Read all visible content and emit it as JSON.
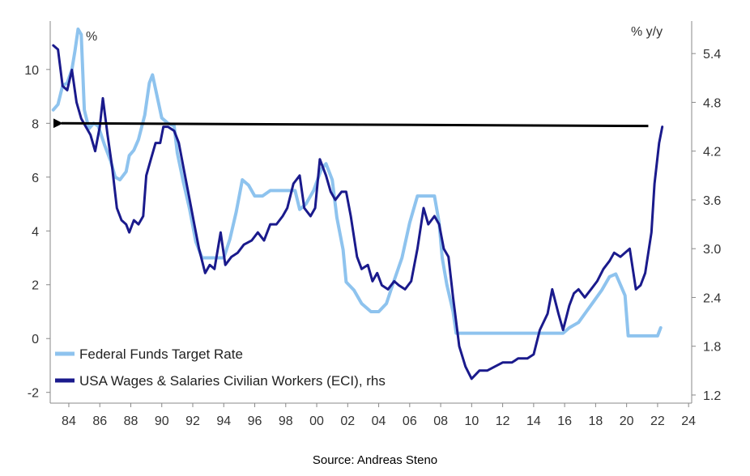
{
  "chart_data": {
    "type": "line",
    "left_axis": {
      "unit": "%",
      "ylim": [
        -2.4,
        11.8
      ],
      "ticks": [
        -2,
        0,
        2,
        4,
        6,
        8,
        10
      ]
    },
    "right_axis": {
      "unit": "% y/y",
      "ylim": [
        1.1,
        5.8
      ],
      "ticks": [
        1.2,
        1.8,
        2.4,
        3.0,
        3.6,
        4.2,
        4.8,
        5.4
      ]
    },
    "x_axis": {
      "xlim": [
        1982.8,
        2024.2
      ],
      "tick_values": [
        1984,
        1986,
        1988,
        1990,
        1992,
        1994,
        1996,
        1998,
        2000,
        2002,
        2004,
        2006,
        2008,
        2010,
        2012,
        2014,
        2016,
        2018,
        2020,
        2022,
        2024
      ],
      "tick_labels": [
        "84",
        "86",
        "88",
        "90",
        "92",
        "94",
        "96",
        "98",
        "00",
        "02",
        "04",
        "06",
        "08",
        "10",
        "12",
        "14",
        "16",
        "18",
        "20",
        "22",
        "24"
      ]
    },
    "series": [
      {
        "name": "Federal Funds Target Rate",
        "axis": "left",
        "color": "#8ec3ee",
        "points": [
          [
            1983.0,
            8.5
          ],
          [
            1983.3,
            8.7
          ],
          [
            1983.6,
            9.4
          ],
          [
            1983.9,
            9.5
          ],
          [
            1984.2,
            10.0
          ],
          [
            1984.4,
            10.7
          ],
          [
            1984.6,
            11.5
          ],
          [
            1984.8,
            11.3
          ],
          [
            1985.0,
            8.5
          ],
          [
            1985.3,
            7.8
          ],
          [
            1985.6,
            8.0
          ],
          [
            1985.9,
            7.9
          ],
          [
            1986.3,
            7.2
          ],
          [
            1986.7,
            6.6
          ],
          [
            1987.0,
            6.0
          ],
          [
            1987.3,
            5.9
          ],
          [
            1987.7,
            6.2
          ],
          [
            1987.9,
            6.8
          ],
          [
            1988.2,
            7.0
          ],
          [
            1988.5,
            7.4
          ],
          [
            1988.9,
            8.3
          ],
          [
            1989.2,
            9.5
          ],
          [
            1989.4,
            9.8
          ],
          [
            1989.7,
            9.0
          ],
          [
            1990.0,
            8.2
          ],
          [
            1990.4,
            8.0
          ],
          [
            1990.8,
            7.9
          ],
          [
            1991.0,
            6.9
          ],
          [
            1991.4,
            5.8
          ],
          [
            1991.8,
            4.8
          ],
          [
            1992.2,
            3.6
          ],
          [
            1992.6,
            3.0
          ],
          [
            1993.0,
            3.0
          ],
          [
            1993.6,
            3.0
          ],
          [
            1994.0,
            3.0
          ],
          [
            1994.4,
            3.7
          ],
          [
            1994.8,
            4.7
          ],
          [
            1995.2,
            5.9
          ],
          [
            1995.6,
            5.7
          ],
          [
            1996.0,
            5.3
          ],
          [
            1996.5,
            5.3
          ],
          [
            1997.0,
            5.5
          ],
          [
            1997.5,
            5.5
          ],
          [
            1998.0,
            5.5
          ],
          [
            1998.6,
            5.5
          ],
          [
            1998.9,
            4.8
          ],
          [
            1999.3,
            5.0
          ],
          [
            1999.8,
            5.5
          ],
          [
            2000.3,
            6.3
          ],
          [
            2000.6,
            6.5
          ],
          [
            2001.0,
            5.9
          ],
          [
            2001.3,
            4.5
          ],
          [
            2001.7,
            3.3
          ],
          [
            2001.9,
            2.1
          ],
          [
            2002.4,
            1.8
          ],
          [
            2002.9,
            1.3
          ],
          [
            2003.5,
            1.0
          ],
          [
            2004.0,
            1.0
          ],
          [
            2004.5,
            1.3
          ],
          [
            2004.9,
            2.0
          ],
          [
            2005.5,
            3.0
          ],
          [
            2006.0,
            4.3
          ],
          [
            2006.5,
            5.3
          ],
          [
            2007.0,
            5.3
          ],
          [
            2007.6,
            5.3
          ],
          [
            2007.9,
            4.3
          ],
          [
            2008.1,
            3.0
          ],
          [
            2008.4,
            2.0
          ],
          [
            2008.8,
            1.0
          ],
          [
            2009.0,
            0.2
          ],
          [
            2010.0,
            0.2
          ],
          [
            2012.0,
            0.2
          ],
          [
            2014.0,
            0.2
          ],
          [
            2015.9,
            0.2
          ],
          [
            2016.3,
            0.4
          ],
          [
            2016.9,
            0.6
          ],
          [
            2017.4,
            1.0
          ],
          [
            2017.9,
            1.4
          ],
          [
            2018.4,
            1.8
          ],
          [
            2018.9,
            2.3
          ],
          [
            2019.3,
            2.4
          ],
          [
            2019.6,
            2.0
          ],
          [
            2019.9,
            1.6
          ],
          [
            2020.1,
            0.1
          ],
          [
            2021.0,
            0.1
          ],
          [
            2022.0,
            0.1
          ],
          [
            2022.2,
            0.4
          ]
        ]
      },
      {
        "name": "USA Wages & Salaries Civilian Workers (ECI), rhs",
        "axis": "right",
        "color": "#1a1a8c",
        "points": [
          [
            1983.0,
            5.5
          ],
          [
            1983.3,
            5.45
          ],
          [
            1983.6,
            5.0
          ],
          [
            1983.9,
            4.95
          ],
          [
            1984.2,
            5.2
          ],
          [
            1984.5,
            4.8
          ],
          [
            1984.8,
            4.6
          ],
          [
            1985.1,
            4.5
          ],
          [
            1985.4,
            4.4
          ],
          [
            1985.7,
            4.2
          ],
          [
            1986.0,
            4.5
          ],
          [
            1986.2,
            4.85
          ],
          [
            1986.5,
            4.4
          ],
          [
            1986.8,
            4.0
          ],
          [
            1987.1,
            3.5
          ],
          [
            1987.4,
            3.35
          ],
          [
            1987.7,
            3.3
          ],
          [
            1987.9,
            3.2
          ],
          [
            1988.2,
            3.35
          ],
          [
            1988.5,
            3.3
          ],
          [
            1988.8,
            3.4
          ],
          [
            1989.0,
            3.9
          ],
          [
            1989.3,
            4.1
          ],
          [
            1989.6,
            4.3
          ],
          [
            1989.9,
            4.3
          ],
          [
            1990.1,
            4.5
          ],
          [
            1990.4,
            4.5
          ],
          [
            1990.8,
            4.45
          ],
          [
            1991.1,
            4.3
          ],
          [
            1991.4,
            4.0
          ],
          [
            1991.8,
            3.6
          ],
          [
            1992.1,
            3.3
          ],
          [
            1992.4,
            3.0
          ],
          [
            1992.8,
            2.7
          ],
          [
            1993.1,
            2.8
          ],
          [
            1993.4,
            2.75
          ],
          [
            1993.8,
            3.2
          ],
          [
            1994.1,
            2.8
          ],
          [
            1994.5,
            2.9
          ],
          [
            1994.9,
            2.95
          ],
          [
            1995.3,
            3.05
          ],
          [
            1995.8,
            3.1
          ],
          [
            1996.2,
            3.2
          ],
          [
            1996.6,
            3.1
          ],
          [
            1997.0,
            3.3
          ],
          [
            1997.4,
            3.3
          ],
          [
            1997.8,
            3.4
          ],
          [
            1998.1,
            3.5
          ],
          [
            1998.5,
            3.8
          ],
          [
            1998.9,
            3.9
          ],
          [
            1999.2,
            3.5
          ],
          [
            1999.6,
            3.4
          ],
          [
            1999.9,
            3.5
          ],
          [
            2000.2,
            4.1
          ],
          [
            2000.6,
            3.9
          ],
          [
            2000.9,
            3.7
          ],
          [
            2001.2,
            3.6
          ],
          [
            2001.6,
            3.7
          ],
          [
            2001.9,
            3.7
          ],
          [
            2002.2,
            3.4
          ],
          [
            2002.6,
            2.9
          ],
          [
            2002.9,
            2.75
          ],
          [
            2003.3,
            2.8
          ],
          [
            2003.6,
            2.6
          ],
          [
            2003.9,
            2.7
          ],
          [
            2004.2,
            2.55
          ],
          [
            2004.6,
            2.5
          ],
          [
            2005.0,
            2.6
          ],
          [
            2005.3,
            2.55
          ],
          [
            2005.7,
            2.5
          ],
          [
            2006.1,
            2.6
          ],
          [
            2006.5,
            3.0
          ],
          [
            2006.9,
            3.5
          ],
          [
            2007.2,
            3.3
          ],
          [
            2007.6,
            3.4
          ],
          [
            2007.9,
            3.3
          ],
          [
            2008.2,
            3.0
          ],
          [
            2008.5,
            2.9
          ],
          [
            2008.8,
            2.4
          ],
          [
            2009.2,
            1.8
          ],
          [
            2009.6,
            1.55
          ],
          [
            2010.0,
            1.4
          ],
          [
            2010.5,
            1.5
          ],
          [
            2011.0,
            1.5
          ],
          [
            2011.5,
            1.55
          ],
          [
            2012.0,
            1.6
          ],
          [
            2012.6,
            1.6
          ],
          [
            2013.0,
            1.65
          ],
          [
            2013.6,
            1.65
          ],
          [
            2014.0,
            1.7
          ],
          [
            2014.4,
            2.0
          ],
          [
            2014.9,
            2.2
          ],
          [
            2015.2,
            2.5
          ],
          [
            2015.6,
            2.2
          ],
          [
            2015.9,
            2.0
          ],
          [
            2016.3,
            2.3
          ],
          [
            2016.6,
            2.45
          ],
          [
            2016.9,
            2.5
          ],
          [
            2017.3,
            2.4
          ],
          [
            2017.7,
            2.5
          ],
          [
            2018.1,
            2.6
          ],
          [
            2018.5,
            2.75
          ],
          [
            2018.9,
            2.85
          ],
          [
            2019.2,
            2.95
          ],
          [
            2019.6,
            2.9
          ],
          [
            2019.9,
            2.95
          ],
          [
            2020.2,
            3.0
          ],
          [
            2020.6,
            2.5
          ],
          [
            2020.9,
            2.55
          ],
          [
            2021.2,
            2.7
          ],
          [
            2021.6,
            3.2
          ],
          [
            2021.8,
            3.8
          ],
          [
            2022.1,
            4.3
          ],
          [
            2022.3,
            4.5
          ]
        ]
      }
    ],
    "arrow": {
      "axis": "left",
      "from": [
        2021.4,
        7.9
      ],
      "to": [
        1983.0,
        8.0
      ],
      "color": "#000000"
    },
    "legend": {
      "placement": "bottom-left"
    }
  },
  "source": "Source: Andreas Steno"
}
